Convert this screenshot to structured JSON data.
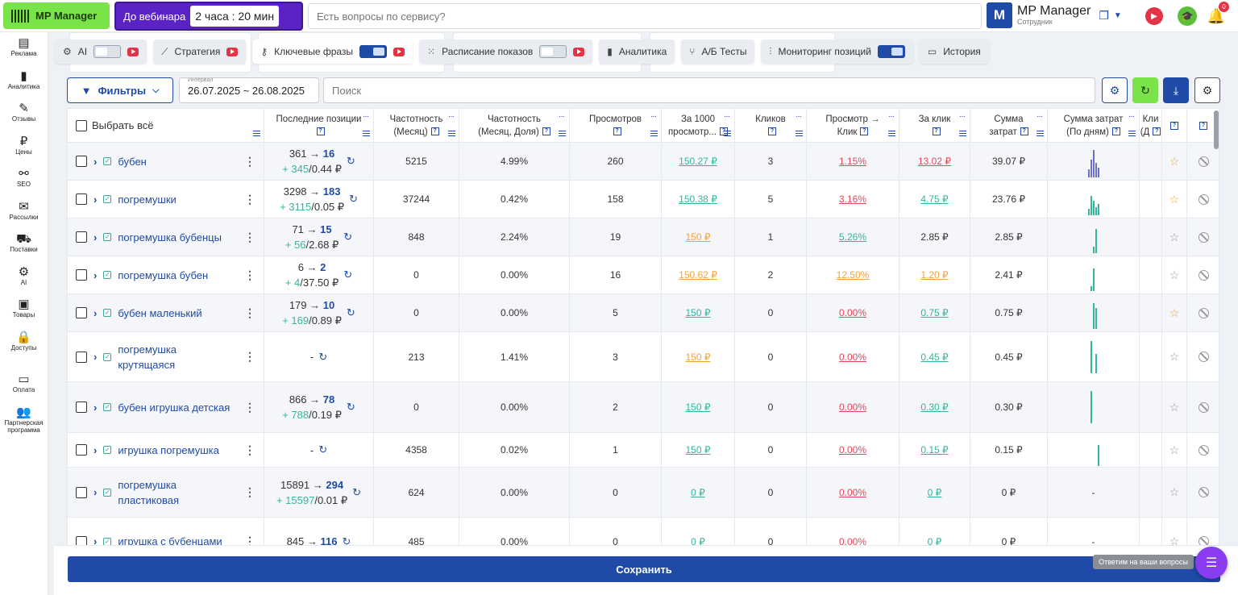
{
  "app": {
    "brand": "MP Manager"
  },
  "webinar": {
    "label": "До вебинара",
    "time": "2 часа : 20 мин"
  },
  "topsearch": {
    "placeholder": "Есть вопросы по сервису?"
  },
  "user": {
    "initial": "M",
    "name": "MP Manager",
    "role": "Сотрудник",
    "notif_count": "0"
  },
  "sidebar": {
    "items": [
      {
        "label": "Реклама",
        "icon": "ads-icon"
      },
      {
        "label": "Аналитика",
        "icon": "bar-chart-icon"
      },
      {
        "label": "Отзывы",
        "icon": "reviews-icon"
      },
      {
        "label": "Цены",
        "icon": "ruble-icon"
      },
      {
        "label": "SEO",
        "icon": "seo-icon"
      },
      {
        "label": "Рассылки",
        "icon": "mail-icon"
      },
      {
        "label": "Поставки",
        "icon": "truck-icon"
      },
      {
        "label": "AI",
        "icon": "chip-icon"
      },
      {
        "label": "Товары",
        "icon": "box-icon"
      },
      {
        "label": "Доступы",
        "icon": "lock-icon"
      },
      {
        "label": "Оплата",
        "icon": "wallet-icon"
      },
      {
        "label": "Партнерская программа",
        "icon": "partners-icon"
      }
    ]
  },
  "tabs": [
    {
      "label": "AI",
      "icon": "chip-icon",
      "toggle": false,
      "video": true
    },
    {
      "label": "Стратегия",
      "icon": "line-chart-icon",
      "toggle": null,
      "video": true
    },
    {
      "label": "Ключевые фразы",
      "icon": "key-icon",
      "toggle": true,
      "video": true,
      "active": true
    },
    {
      "label": "Расписание показов",
      "icon": "grid-icon",
      "toggle": false,
      "video": true
    },
    {
      "label": "Аналитика",
      "icon": "bar-chart-icon",
      "toggle": null,
      "video": false
    },
    {
      "label": "А/Б Тесты",
      "icon": "fork-icon",
      "toggle": null,
      "video": false
    },
    {
      "label": "Мониторинг позиций",
      "icon": "slider-icon",
      "toggle": true,
      "video": false
    },
    {
      "label": "История",
      "icon": "history-icon",
      "toggle": null,
      "video": false
    }
  ],
  "toolbar": {
    "filters_label": "Фильтры",
    "interval_label": "Интервал",
    "interval_value": "26.07.2025 ~ 26.08.2025",
    "search_placeholder": "Поиск"
  },
  "table": {
    "select_all": "Выбрать всё",
    "headers": [
      {
        "l1": "Последние позиции",
        "l2": ""
      },
      {
        "l1": "Частотность",
        "l2": "(Месяц)"
      },
      {
        "l1": "Частотность",
        "l2": "(Месяц, Доля)"
      },
      {
        "l1": "Просмотров",
        "l2": ""
      },
      {
        "l1": "За 1000",
        "l2": "просмотр..."
      },
      {
        "l1": "Кликов",
        "l2": ""
      },
      {
        "l1": "Просмотр →",
        "l2": "Клик"
      },
      {
        "l1": "За клик",
        "l2": ""
      },
      {
        "l1": "Сумма",
        "l2": "затрат"
      },
      {
        "l1": "Сумма затрат",
        "l2": "(По дням)"
      },
      {
        "l1": "Кли",
        "l2": "(Д"
      }
    ],
    "rows": [
      {
        "kw": "бубен",
        "p_from": "361",
        "p_to": "16",
        "p_delta": "+ 345",
        "p_cost": "/0.44 ₽",
        "freq": "5215",
        "share": "4.99%",
        "views": "260",
        "cpm": "150.27 ₽",
        "cpm_c": "lg",
        "clicks": "3",
        "ctr": "1.15%",
        "ctr_c": "lr",
        "cpc": "13.02 ₽",
        "cpc_c": "lr",
        "sum": "39.07 ₽",
        "star": true,
        "spark_color": "#6b6fc8",
        "spark": [
          10,
          22,
          34,
          18,
          12
        ]
      },
      {
        "kw": "погремушки",
        "p_from": "3298",
        "p_to": "183",
        "p_delta": "+ 3115",
        "p_cost": "/0.05 ₽",
        "freq": "37244",
        "share": "0.42%",
        "views": "158",
        "cpm": "150.38 ₽",
        "cpm_c": "lg",
        "clicks": "5",
        "ctr": "3.16%",
        "ctr_c": "lr",
        "cpc": "4.75 ₽",
        "cpc_c": "lg",
        "sum": "23.76 ₽",
        "star": true,
        "spark_color": "#35b5a0",
        "spark": [
          8,
          24,
          18,
          10,
          14
        ]
      },
      {
        "kw": "погремушка бубенцы",
        "p_from": "71",
        "p_to": "15",
        "p_delta": "+ 56",
        "p_cost": "/2.68 ₽",
        "freq": "848",
        "share": "2.24%",
        "views": "19",
        "cpm": "150 ₽",
        "cpm_c": "lo",
        "clicks": "1",
        "ctr": "5.26%",
        "ctr_c": "lg",
        "cpc": "2.85 ₽",
        "cpc_c": "",
        "sum": "2.85 ₽",
        "star": false,
        "spark_color": "#35b5a0",
        "spark": [
          0,
          0,
          8,
          30,
          0
        ]
      },
      {
        "kw": "погремушка бубен",
        "p_from": "6",
        "p_to": "2",
        "p_delta": "+ 4",
        "p_cost": "/37.50 ₽",
        "freq": "0",
        "share": "0.00%",
        "views": "16",
        "cpm": "150.62 ₽",
        "cpm_c": "lo",
        "clicks": "2",
        "ctr": "12.50%",
        "ctr_c": "lo",
        "cpc": "1.20 ₽",
        "cpc_c": "lo",
        "sum": "2.41 ₽",
        "star": false,
        "spark_color": "#35b5a0",
        "spark": [
          0,
          6,
          28,
          0,
          0
        ]
      },
      {
        "kw": "бубен маленький",
        "p_from": "179",
        "p_to": "10",
        "p_delta": "+ 169",
        "p_cost": "/0.89 ₽",
        "freq": "0",
        "share": "0.00%",
        "views": "5",
        "cpm": "150 ₽",
        "cpm_c": "lg",
        "clicks": "0",
        "ctr": "0.00%",
        "ctr_c": "lr",
        "cpc": "0.75 ₽",
        "cpc_c": "lg",
        "sum": "0.75 ₽",
        "star": true,
        "spark_color": "#35b5a0",
        "spark": [
          0,
          0,
          32,
          26,
          0
        ]
      },
      {
        "kw": "погремушка крутящаяся",
        "p_from": "-",
        "p_to": "",
        "p_delta": "",
        "p_cost": "",
        "freq": "213",
        "share": "1.41%",
        "views": "3",
        "cpm": "150 ₽",
        "cpm_c": "lo",
        "clicks": "0",
        "ctr": "0.00%",
        "ctr_c": "lr",
        "cpc": "0.45 ₽",
        "cpc_c": "lg",
        "sum": "0.45 ₽",
        "star": false,
        "spark_color": "#35b5a0",
        "spark": [
          0,
          40,
          0,
          24,
          0
        ]
      },
      {
        "kw": "бубен игрушка детская",
        "p_from": "866",
        "p_to": "78",
        "p_delta": "+ 788",
        "p_cost": "/0.19 ₽",
        "freq": "0",
        "share": "0.00%",
        "views": "2",
        "cpm": "150 ₽",
        "cpm_c": "lg",
        "clicks": "0",
        "ctr": "0.00%",
        "ctr_c": "lr",
        "cpc": "0.30 ₽",
        "cpc_c": "lg",
        "sum": "0.30 ₽",
        "star": false,
        "spark_color": "#35b5a0",
        "spark": [
          0,
          40,
          0,
          0,
          0
        ]
      },
      {
        "kw": "игрушка погремушка",
        "p_from": "-",
        "p_to": "",
        "p_delta": "",
        "p_cost": "",
        "freq": "4358",
        "share": "0.02%",
        "views": "1",
        "cpm": "150 ₽",
        "cpm_c": "lg",
        "clicks": "0",
        "ctr": "0.00%",
        "ctr_c": "lr",
        "cpc": "0.15 ₽",
        "cpc_c": "lg",
        "sum": "0.15 ₽",
        "star": false,
        "spark_color": "#35b5a0",
        "spark": [
          0,
          0,
          0,
          0,
          26
        ]
      },
      {
        "kw": "погремушка пластиковая",
        "p_from": "15891",
        "p_to": "294",
        "p_delta": "+ 15597",
        "p_cost": "/0.01 ₽",
        "freq": "624",
        "share": "0.00%",
        "views": "0",
        "cpm": "0 ₽",
        "cpm_c": "lg",
        "clicks": "0",
        "ctr": "0.00%",
        "ctr_c": "lr",
        "cpc": "0 ₽",
        "cpc_c": "lg",
        "sum": "0 ₽",
        "star": false,
        "spark_color": "#35b5a0",
        "spark": [],
        "spark_text": "-"
      },
      {
        "kw": "игрушка с бубенцами",
        "p_from": "845",
        "p_to": "116",
        "p_delta": "",
        "p_cost": "",
        "freq": "485",
        "share": "0.00%",
        "views": "0",
        "cpm": "0 ₽",
        "cpm_c": "lg",
        "clicks": "0",
        "ctr": "0.00%",
        "ctr_c": "lr",
        "cpc": "0 ₽",
        "cpc_c": "lg",
        "sum": "0 ₽",
        "star": false,
        "spark_color": "#35b5a0",
        "spark": [],
        "spark_text": "-"
      }
    ]
  },
  "footer": {
    "save_label": "Сохранить",
    "chat_label": "Ответим на ваши вопросы"
  }
}
